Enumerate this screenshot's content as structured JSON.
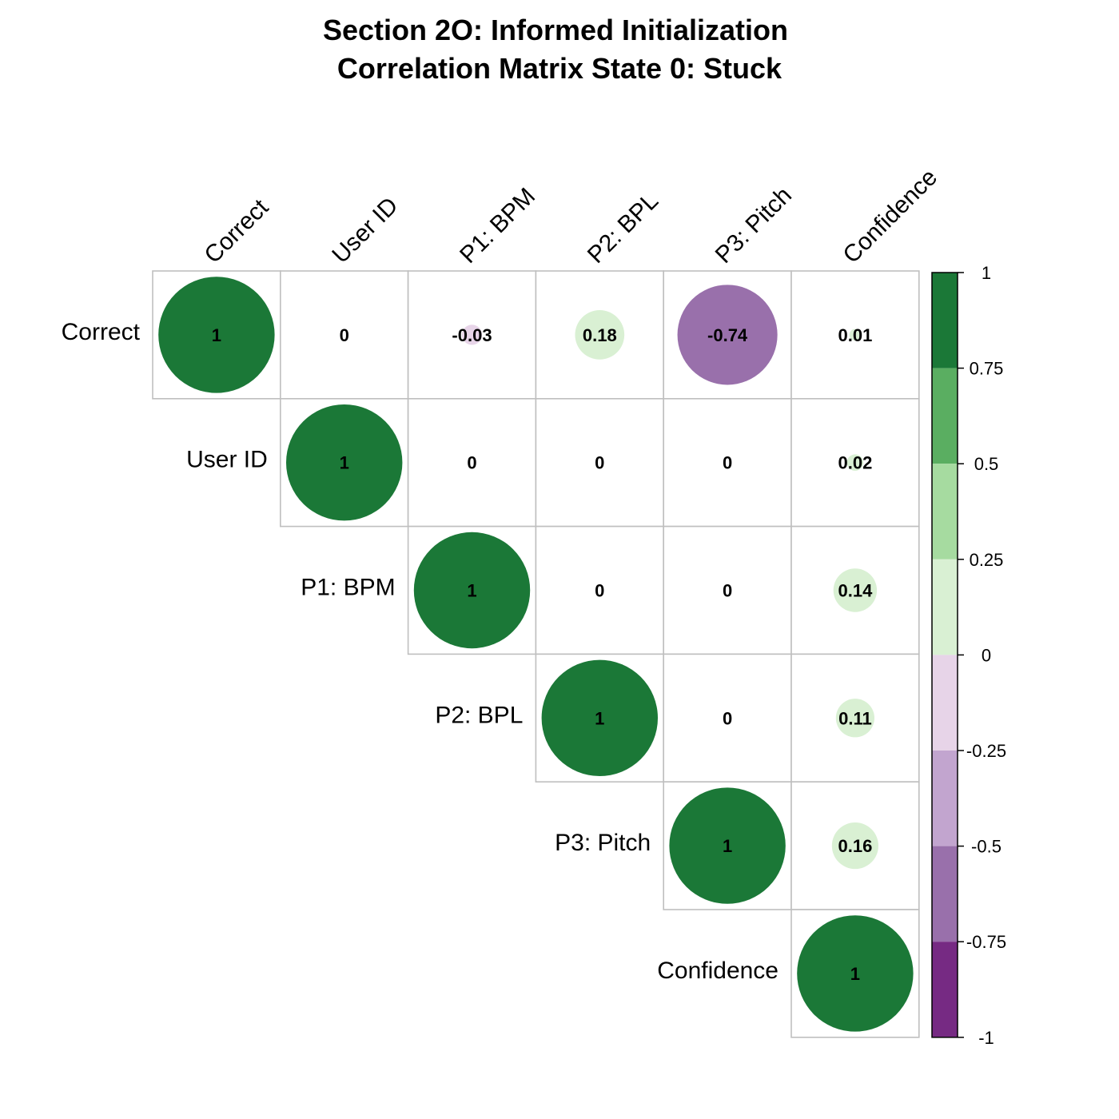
{
  "chart_data": {
    "type": "heatmap",
    "title_lines": [
      "Section 2O: Informed Initialization",
      "Correlation Matrix State 0: Stuck"
    ],
    "variables": [
      "Correct",
      "User ID",
      "P1: BPM",
      "P2: BPL",
      "P3: Pitch",
      "Confidence"
    ],
    "matrix": [
      [
        1,
        0,
        -0.03,
        0.18,
        -0.74,
        0.01
      ],
      [
        null,
        1,
        0,
        0,
        0,
        0.02
      ],
      [
        null,
        null,
        1,
        0,
        0,
        0.14
      ],
      [
        null,
        null,
        null,
        1,
        0,
        0.11
      ],
      [
        null,
        null,
        null,
        null,
        1,
        0.16
      ],
      [
        null,
        null,
        null,
        null,
        null,
        1
      ]
    ],
    "value_labels": [
      [
        "1",
        "0",
        "-0.03",
        "0.18",
        "-0.74",
        "0.01"
      ],
      [
        null,
        "1",
        "0",
        "0",
        "0",
        "0.02"
      ],
      [
        null,
        null,
        "1",
        "0",
        "0",
        "0.14"
      ],
      [
        null,
        null,
        null,
        "1",
        "0",
        "0.11"
      ],
      [
        null,
        null,
        null,
        null,
        "1",
        "0.16"
      ],
      [
        null,
        null,
        null,
        null,
        null,
        "1"
      ]
    ],
    "layout": "upper-triangle",
    "glyph": "circle",
    "color_scale": {
      "range": [
        -1,
        1
      ],
      "ticks": [
        "1",
        "0.75",
        "0.5",
        "0.25",
        "0",
        "-0.25",
        "-0.5",
        "-0.75",
        "-1"
      ],
      "bins": [
        {
          "from": 0.75,
          "to": 1,
          "color": "#1b7837"
        },
        {
          "from": 0.5,
          "to": 0.75,
          "color": "#5aae61"
        },
        {
          "from": 0.25,
          "to": 0.5,
          "color": "#a6dba0"
        },
        {
          "from": 0,
          "to": 0.25,
          "color": "#d9f0d3"
        },
        {
          "from": -0.25,
          "to": 0,
          "color": "#e7d4e8"
        },
        {
          "from": -0.5,
          "to": -0.25,
          "color": "#c2a5cf"
        },
        {
          "from": -0.75,
          "to": -0.5,
          "color": "#9970ab"
        },
        {
          "from": -1,
          "to": -0.75,
          "color": "#762a83"
        }
      ]
    },
    "grid_color": "#bfbfbf"
  }
}
